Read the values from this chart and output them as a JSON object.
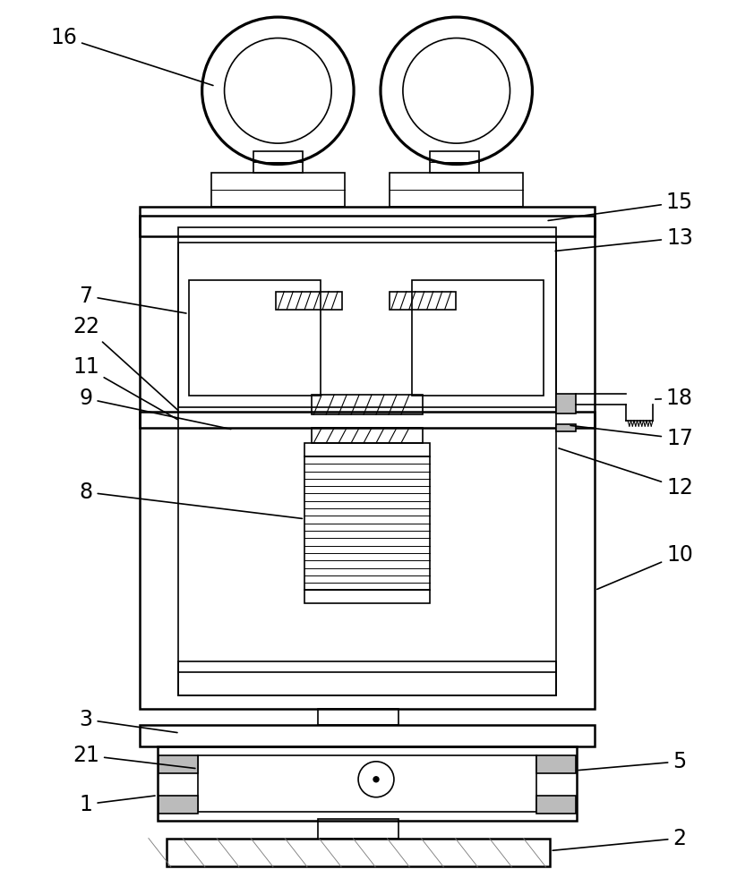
{
  "bg_color": "#ffffff",
  "line_color": "#000000",
  "lw_thick": 1.8,
  "lw_med": 1.2,
  "lw_thin": 0.7,
  "fig_width": 8.42,
  "fig_height": 10.0
}
